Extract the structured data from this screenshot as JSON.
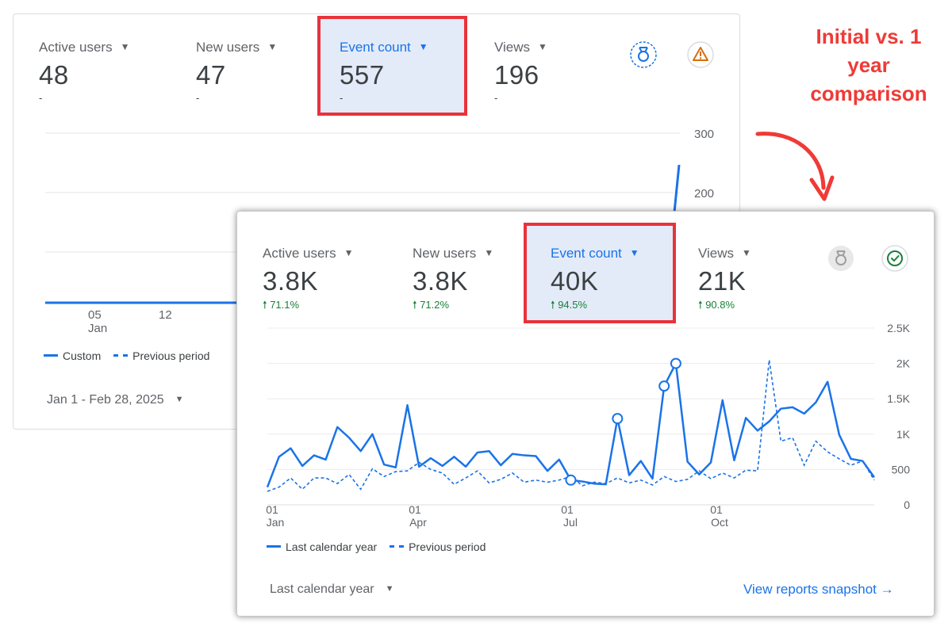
{
  "annotation": {
    "lines": [
      "Initial vs. 1",
      "year",
      "comparison"
    ]
  },
  "initial_card": {
    "metrics": [
      {
        "label": "Active users",
        "value": "48",
        "change": "-"
      },
      {
        "label": "New users",
        "value": "47",
        "change": "-"
      },
      {
        "label": "Event count",
        "value": "557",
        "change": "-"
      },
      {
        "label": "Views",
        "value": "196",
        "change": "-"
      }
    ],
    "icons": [
      "ribbon-badge-icon",
      "warning-triangle-icon"
    ],
    "legend": {
      "series1": "Custom",
      "series2": "Previous period"
    },
    "date_range": "Jan 1 - Feb 28, 2025"
  },
  "year_card": {
    "metrics": [
      {
        "label": "Active users",
        "value": "3.8K",
        "change": "71.1%"
      },
      {
        "label": "New users",
        "value": "3.8K",
        "change": "71.2%"
      },
      {
        "label": "Event count",
        "value": "40K",
        "change": "94.5%"
      },
      {
        "label": "Views",
        "value": "21K",
        "change": "90.8%"
      }
    ],
    "icons": [
      "ribbon-badge-icon",
      "check-circle-icon"
    ],
    "legend": {
      "series1": "Last calendar year",
      "series2": "Previous period"
    },
    "date_range": "Last calendar year",
    "link": "View reports snapshot"
  },
  "colors": {
    "accent": "#1a73e8",
    "highlight_border": "#e8333b",
    "positive": "#188038",
    "annotation": "#ef3a36"
  },
  "chart_data": [
    {
      "type": "line",
      "yticks": [
        "300",
        "200"
      ],
      "x_ticks": [
        {
          "day": "05",
          "month": "Jan"
        },
        {
          "day": "12",
          "month": ""
        }
      ],
      "series": [
        {
          "name": "Custom"
        },
        {
          "name": "Previous period"
        }
      ],
      "ylim": [
        0,
        300
      ]
    },
    {
      "type": "line",
      "yticks": [
        "2.5K",
        "2K",
        "1.5K",
        "1K",
        "500",
        "0"
      ],
      "ylim": [
        0,
        2500
      ],
      "x_ticks": [
        {
          "day": "01",
          "month": "Jan"
        },
        {
          "day": "01",
          "month": "Apr"
        },
        {
          "day": "01",
          "month": "Jul"
        },
        {
          "day": "01",
          "month": "Oct"
        }
      ],
      "series": [
        {
          "name": "Last calendar year",
          "values": [
            250,
            680,
            800,
            550,
            700,
            640,
            1100,
            950,
            760,
            1000,
            570,
            530,
            1410,
            540,
            660,
            550,
            680,
            540,
            740,
            760,
            560,
            720,
            700,
            690,
            480,
            640,
            350,
            330,
            300,
            290,
            1220,
            420,
            620,
            370,
            1680,
            2000,
            610,
            430,
            600,
            1480,
            630,
            1230,
            1050,
            1180,
            1360,
            1380,
            1290,
            1450,
            1740,
            990,
            650,
            620,
            390
          ],
          "markers": [
            26,
            30,
            34,
            35
          ]
        },
        {
          "name": "Previous period",
          "values": [
            190,
            250,
            380,
            220,
            380,
            380,
            300,
            430,
            220,
            510,
            400,
            470,
            480,
            600,
            500,
            450,
            290,
            380,
            480,
            310,
            360,
            450,
            320,
            350,
            320,
            350,
            400,
            270,
            320,
            300,
            380,
            310,
            350,
            280,
            400,
            330,
            360,
            480,
            370,
            450,
            380,
            490,
            480,
            2050,
            900,
            950,
            560,
            900,
            750,
            650,
            560,
            620,
            350
          ]
        }
      ]
    }
  ]
}
